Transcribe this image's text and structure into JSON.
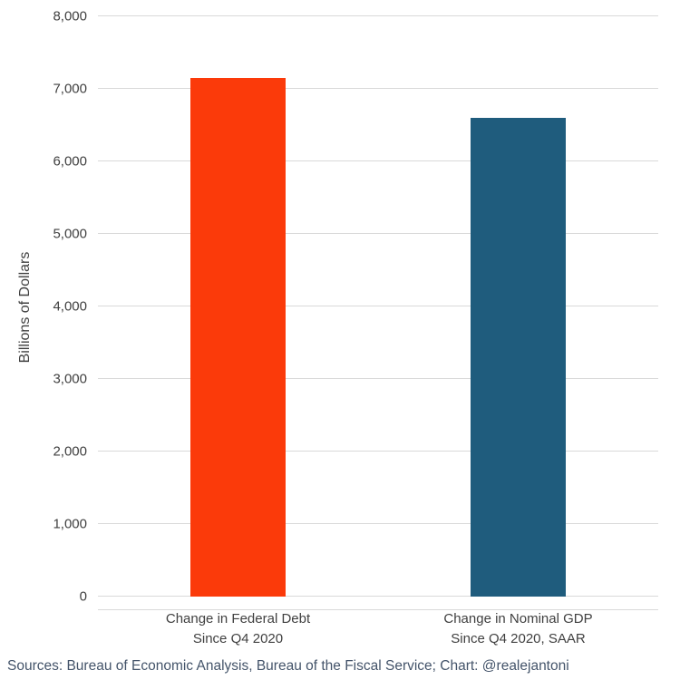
{
  "chart_data": {
    "type": "bar",
    "categories": [
      "Change in Federal Debt\nSince Q4 2020",
      "Change in Nominal GDP\nSince Q4 2020, SAAR"
    ],
    "values": [
      7150,
      6600
    ],
    "colors": [
      "#fb3a0a",
      "#1f5c7d"
    ],
    "title": "",
    "xlabel": "",
    "ylabel": "Billions of Dollars",
    "ylim": [
      0,
      8000
    ],
    "ytick_step": 1000,
    "ytick_labels": [
      "0",
      "1,000",
      "2,000",
      "3,000",
      "4,000",
      "5,000",
      "6,000",
      "7,000",
      "8,000"
    ],
    "grid": true,
    "gridline_color": "#d9d9d9",
    "text_color": "#404040",
    "legend": "none"
  },
  "footer": {
    "source_text": "Sources: Bureau of Economic Analysis, Bureau of the Fiscal Service; Chart: @realejantoni"
  }
}
